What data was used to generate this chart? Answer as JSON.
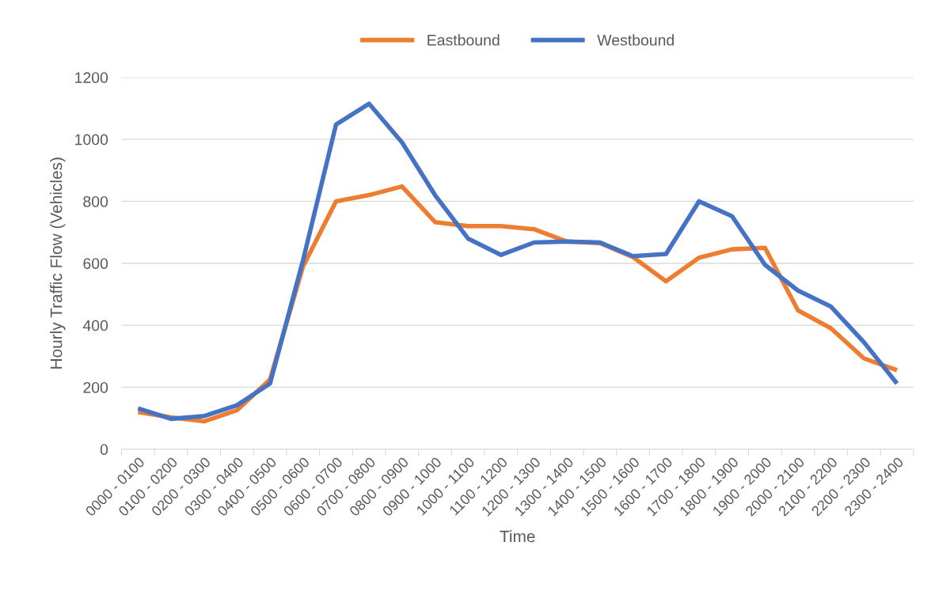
{
  "chart_data": {
    "type": "line",
    "xlabel": "Time",
    "ylabel": "Hourly Traffic Flow (Vehicles)",
    "categories": [
      "0000 - 0100",
      "0100 - 0200",
      "0200 - 0300",
      "0300 - 0400",
      "0400 - 0500",
      "0500 - 0600",
      "0600 - 0700",
      "0700 - 0800",
      "0800 - 0900",
      "0900 - 1000",
      "1000 - 1100",
      "1100 - 1200",
      "1200 - 1300",
      "1300 - 1400",
      "1400 - 1500",
      "1500 - 1600",
      "1600 - 1700",
      "1700 - 1800",
      "1800 - 1900",
      "1900 - 2000",
      "2000 - 2100",
      "2100 - 2200",
      "2200 - 2300",
      "2300 - 2400"
    ],
    "series": [
      {
        "name": "Eastbound",
        "color": "#ed7d31",
        "values": [
          120,
          103,
          90,
          126,
          225,
          590,
          800,
          820,
          848,
          733,
          720,
          720,
          710,
          670,
          665,
          620,
          542,
          618,
          645,
          650,
          448,
          390,
          293,
          255
        ]
      },
      {
        "name": "Westbound",
        "color": "#4472c4",
        "values": [
          132,
          98,
          107,
          142,
          212,
          610,
          1048,
          1115,
          990,
          820,
          680,
          627,
          667,
          670,
          667,
          623,
          630,
          800,
          752,
          595,
          512,
          460,
          345,
          212
        ]
      }
    ],
    "ylim": [
      0,
      1200
    ],
    "yticks": [
      0,
      200,
      400,
      600,
      800,
      1000,
      1200
    ],
    "grid": "y",
    "legend": "top",
    "marker": "none",
    "line_style": "solid"
  }
}
